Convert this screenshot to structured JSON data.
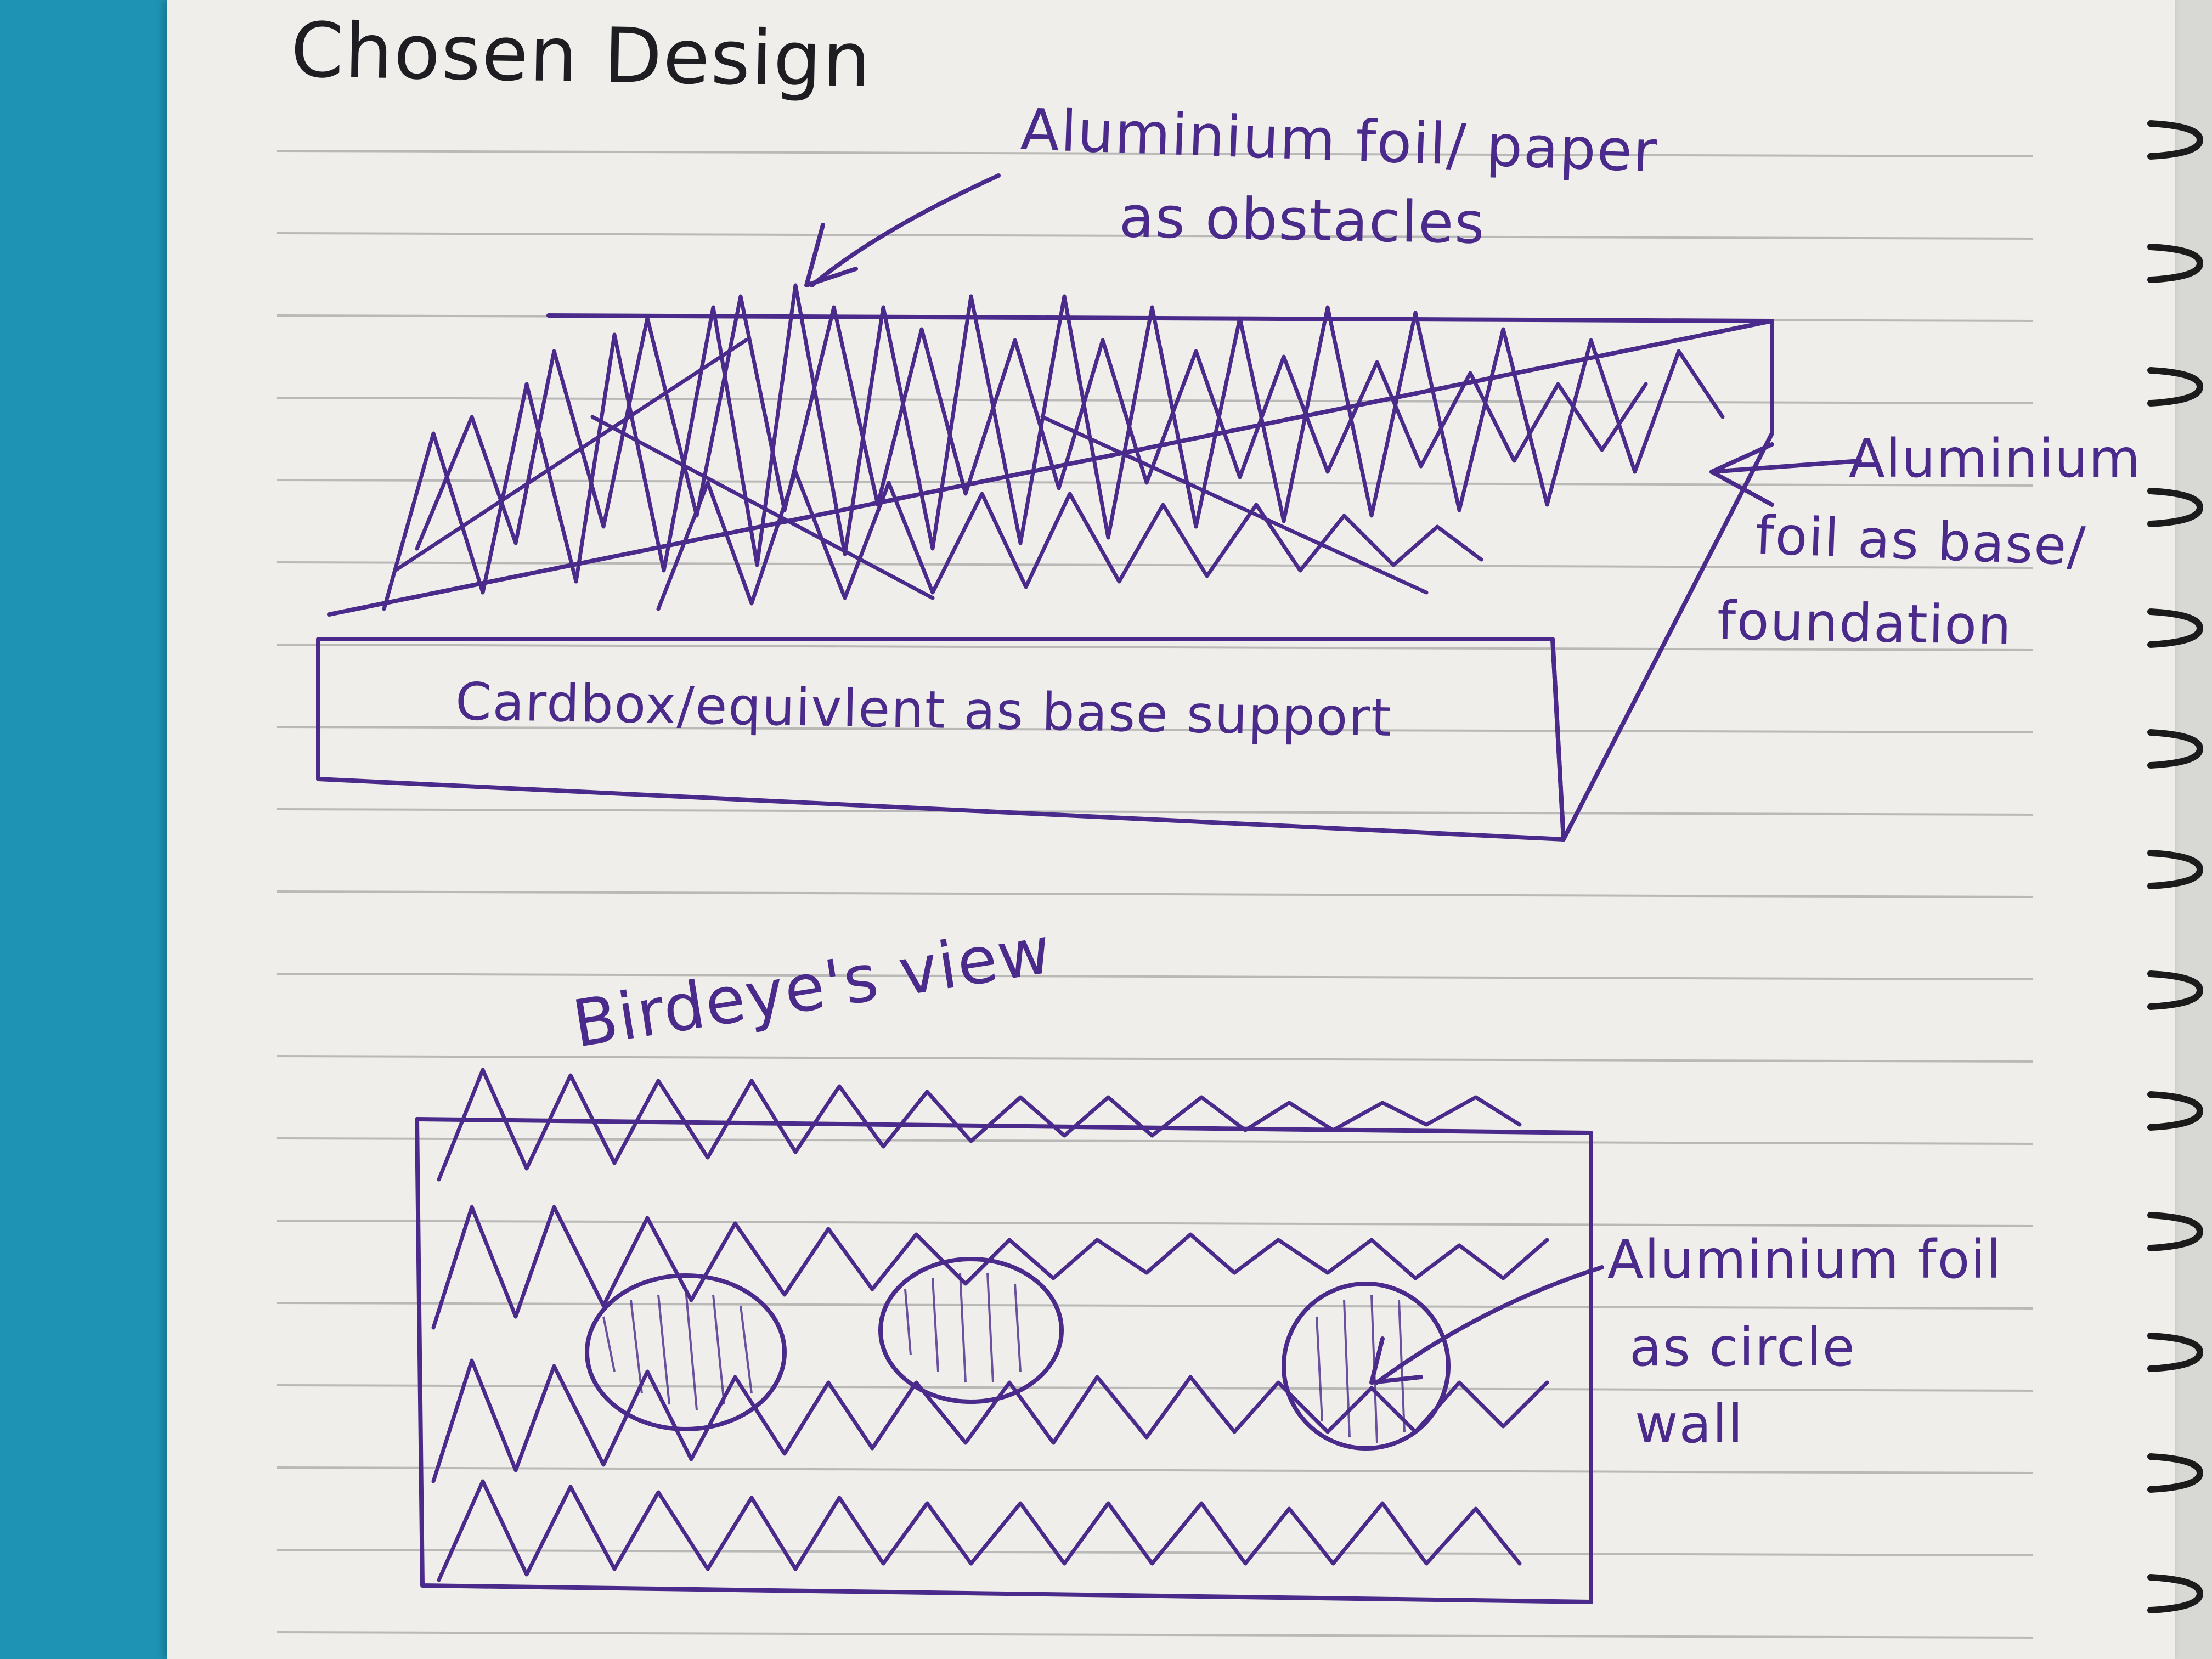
{
  "photo": {
    "subject": "notebook-page-sketch",
    "ink_color": "#4a2a8a",
    "pencil_color": "#1e1e22",
    "paper_color": "#efeeeb",
    "background_color": "#1f93b4"
  },
  "notes": {
    "title": "Chosen Design",
    "obstacles_label_1": "Aluminium foil/ paper",
    "obstacles_label_2": "as obstacles",
    "base_label_1": "Aluminium",
    "base_label_2": "foil as base/",
    "base_label_3": "foundation",
    "support_label": "Cardbox/equivlent as base support",
    "view_label": "Birdeye's view",
    "circle_label_1": "Aluminium foil",
    "circle_label_2": "as circle",
    "circle_label_3": "wall"
  }
}
